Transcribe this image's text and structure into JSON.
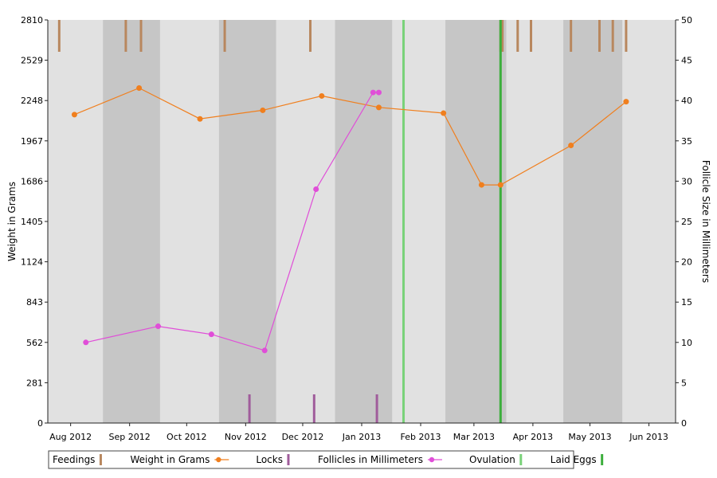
{
  "chart_data": {
    "type": "line",
    "title": "",
    "xlabel": "",
    "ylabel": "Weight in Grams",
    "y2label": "Follicle Size in Millimeters",
    "x_ticks": [
      "Aug 2012",
      "Sep 2012",
      "Oct 2012",
      "Nov 2012",
      "Dec 2012",
      "Jan 2013",
      "Feb 2013",
      "Mar 2013",
      "Apr 2013",
      "May 2013",
      "Jun 2013"
    ],
    "xlim": [
      "2012-07-20",
      "2013-06-15"
    ],
    "ylim": [
      0,
      2810
    ],
    "y_ticks": [
      0,
      281,
      562,
      843,
      1124,
      1405,
      1686,
      1967,
      2248,
      2529,
      2810
    ],
    "y2lim": [
      0,
      50
    ],
    "y2_ticks": [
      0,
      5,
      10,
      15,
      20,
      25,
      30,
      35,
      40,
      45,
      50
    ],
    "shaded_bands": [
      [
        "2012-08-18",
        "2012-09-17"
      ],
      [
        "2012-10-18",
        "2012-11-17"
      ],
      [
        "2012-12-18",
        "2013-01-17"
      ],
      [
        "2013-02-14",
        "2013-03-18"
      ],
      [
        "2013-04-17",
        "2013-05-18"
      ]
    ],
    "series": [
      {
        "name": "Weight in Grams",
        "axis": "left",
        "color": "#f07f1e",
        "x": [
          "2012-08-03",
          "2012-09-06",
          "2012-10-08",
          "2012-11-10",
          "2012-12-11",
          "2013-01-10",
          "2013-02-13",
          "2013-03-05",
          "2013-03-15",
          "2013-04-21",
          "2013-05-20"
        ],
        "y": [
          2150,
          2335,
          2120,
          2180,
          2280,
          2200,
          2160,
          1660,
          1660,
          1935,
          2240
        ]
      },
      {
        "name": "Follicles in Millimeters",
        "axis": "right",
        "color": "#e04ed8",
        "x": [
          "2012-08-09",
          "2012-09-16",
          "2012-10-14",
          "2012-11-11",
          "2012-11-38",
          "2012-12-38",
          "2013-01-10"
        ],
        "y": [
          10,
          12,
          11,
          9,
          29,
          41,
          41
        ]
      }
    ],
    "events": [
      {
        "name": "Feedings",
        "color": "#b8875e",
        "position": "top",
        "dates": [
          "2012-07-26",
          "2012-08-30",
          "2012-09-07",
          "2012-10-21",
          "2012-12-05",
          "2013-03-15",
          "2013-03-16",
          "2013-03-24",
          "2013-03-31",
          "2013-04-21",
          "2013-05-06",
          "2013-05-13",
          "2013-05-20"
        ]
      },
      {
        "name": "Locks",
        "color": "#a05c9b",
        "position": "bottom",
        "dates": [
          "2012-11-03",
          "2012-12-07",
          "2013-01-09"
        ]
      },
      {
        "name": "Ovulation",
        "color": "#79d279",
        "position": "full",
        "dates": [
          "2013-01-23"
        ]
      },
      {
        "name": "Laid Eggs",
        "color": "#3cae3c",
        "position": "full",
        "dates": [
          "2013-03-15"
        ]
      }
    ],
    "legend": {
      "placement": "bottom-left",
      "entries": [
        {
          "label": "Feedings",
          "marker": "tick",
          "color": "#b8875e"
        },
        {
          "label": "Weight in Grams",
          "marker": "line-dot",
          "color": "#f07f1e"
        },
        {
          "label": "Locks",
          "marker": "tick",
          "color": "#a05c9b"
        },
        {
          "label": "Follicles in Millimeters",
          "marker": "line-dot",
          "color": "#e04ed8"
        },
        {
          "label": "Ovulation",
          "marker": "tick",
          "color": "#79d279"
        },
        {
          "label": "Laid Eggs",
          "marker": "tick",
          "color": "#3cae3c"
        }
      ]
    },
    "colors": {
      "plot_background": "#e1e1e1",
      "band": "#c6c6c6",
      "axis": "#222222"
    }
  }
}
